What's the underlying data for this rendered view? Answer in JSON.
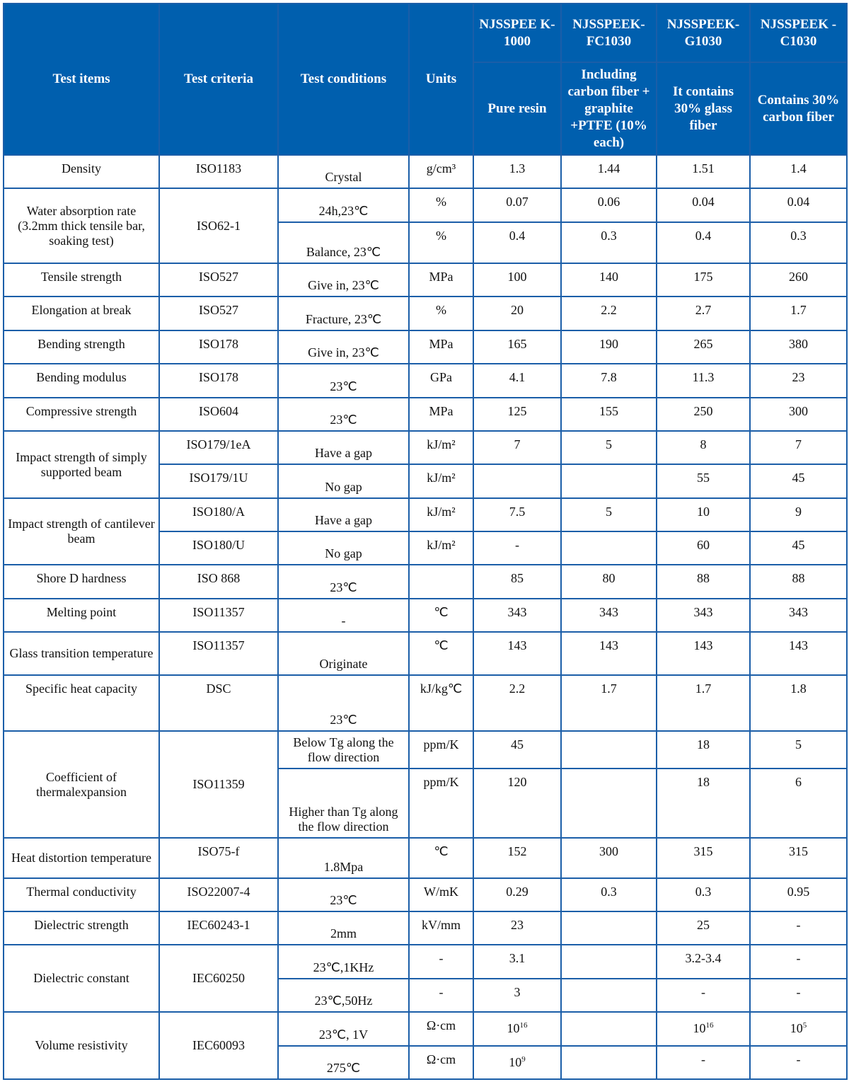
{
  "header": {
    "test_items": "Test items",
    "test_criteria": "Test criteria",
    "test_conditions": "Test conditions",
    "units": "Units",
    "grades": [
      {
        "name": "NJSSPEE K-1000",
        "desc": "Pure resin"
      },
      {
        "name": "NJSSPEEK-FC1030",
        "desc": "Including carbon fiber + graphite +PTFE (10% each)"
      },
      {
        "name": "NJSSPEEK-G1030",
        "desc": "It contains 30% glass fiber"
      },
      {
        "name": "NJSSPEEK -C1030",
        "desc": "Contains 30% carbon fiber"
      }
    ]
  },
  "colors": {
    "header_bg": "#005fae",
    "border": "#1b5ea8",
    "header_text": "#ffffff"
  },
  "groups": [
    {
      "item": "Density",
      "criteria": "ISO1183",
      "subrows": [
        {
          "condition": "Crystal",
          "unit": "g/cm³",
          "values": [
            "1.3",
            "1.44",
            "1.51",
            "1.4"
          ]
        }
      ]
    },
    {
      "item": "Water absorption rate (3.2mm thick tensile bar, soaking test)",
      "criteria": "ISO62-1",
      "subrows": [
        {
          "condition": "24h,23℃",
          "unit": "%",
          "values": [
            "0.07",
            "0.06",
            "0.04",
            "0.04"
          ]
        },
        {
          "condition": "Balance, 23℃",
          "unit": "%",
          "values": [
            "0.4",
            "0.3",
            "0.4",
            "0.3"
          ]
        }
      ]
    },
    {
      "item": "Tensile strength",
      "criteria": "ISO527",
      "subrows": [
        {
          "condition": "Give in, 23℃",
          "unit": "MPa",
          "values": [
            "100",
            "140",
            "175",
            "260"
          ]
        }
      ]
    },
    {
      "item": "Elongation at break",
      "criteria": "ISO527",
      "subrows": [
        {
          "condition": "Fracture, 23℃",
          "unit": "%",
          "values": [
            "20",
            "2.2",
            "2.7",
            "1.7"
          ]
        }
      ]
    },
    {
      "item": "Bending strength",
      "criteria": "ISO178",
      "subrows": [
        {
          "condition": "Give in, 23℃",
          "unit": "MPa",
          "values": [
            "165",
            "190",
            "265",
            "380"
          ]
        }
      ]
    },
    {
      "item": "Bending modulus",
      "criteria": "ISO178",
      "subrows": [
        {
          "condition": "23℃",
          "unit": "GPa",
          "values": [
            "4.1",
            "7.8",
            "11.3",
            "23"
          ]
        }
      ]
    },
    {
      "item": "Compressive strength",
      "criteria": "ISO604",
      "subrows": [
        {
          "condition": "23℃",
          "unit": "MPa",
          "values": [
            "125",
            "155",
            "250",
            "300"
          ]
        }
      ]
    },
    {
      "item": "Impact strength of simply supported beam",
      "criteria": [
        "ISO179/1eA",
        "ISO179/1U"
      ],
      "subrows": [
        {
          "condition": "Have a gap",
          "unit": "kJ/m²",
          "values": [
            "7",
            "5",
            "8",
            "7"
          ]
        },
        {
          "condition": "No gap",
          "unit": "kJ/m²",
          "values": [
            "",
            "",
            "55",
            "45"
          ]
        }
      ]
    },
    {
      "item": "Impact strength of cantilever beam",
      "criteria": [
        "ISO180/A",
        "ISO180/U"
      ],
      "subrows": [
        {
          "condition": "Have a gap",
          "unit": "kJ/m²",
          "values": [
            "7.5",
            "5",
            "10",
            "9"
          ]
        },
        {
          "condition": "No gap",
          "unit": "kJ/m²",
          "values": [
            "-",
            "",
            "60",
            "45"
          ]
        }
      ]
    },
    {
      "item": "Shore D hardness",
      "criteria": "ISO 868",
      "subrows": [
        {
          "condition": "23℃",
          "unit": "",
          "values": [
            "85",
            "80",
            "88",
            "88"
          ]
        }
      ]
    },
    {
      "item": "Melting point",
      "criteria": "ISO11357",
      "subrows": [
        {
          "condition": "-",
          "unit": "℃",
          "values": [
            "343",
            "343",
            "343",
            "343"
          ]
        }
      ]
    },
    {
      "item": "Glass transition temperature",
      "criteria": "ISO11357",
      "subrows": [
        {
          "condition": "Originate",
          "unit": "℃",
          "values": [
            "143",
            "143",
            "143",
            "143"
          ]
        }
      ]
    },
    {
      "item": "Specific heat capacity",
      "criteria": "DSC",
      "subrows": [
        {
          "condition": "23℃",
          "unit": "kJ/kg℃",
          "values": [
            "2.2",
            "1.7",
            "1.7",
            "1.8"
          ]
        }
      ]
    },
    {
      "item": "Coefficient of thermalexpansion",
      "criteria": "ISO11359",
      "subrows": [
        {
          "condition": "Below Tg along the flow direction",
          "unit": "ppm/K",
          "values": [
            "45",
            "",
            "18",
            "5"
          ]
        },
        {
          "condition": "Higher than Tg along the flow direction",
          "unit": "ppm/K",
          "values": [
            "120",
            "",
            "18",
            "6"
          ]
        }
      ]
    },
    {
      "item": "Heat distortion temperature",
      "criteria": "ISO75-f",
      "subrows": [
        {
          "condition": "1.8Mpa",
          "unit": "℃",
          "values": [
            "152",
            "300",
            "315",
            "315"
          ]
        }
      ]
    },
    {
      "item": "Thermal conductivity",
      "criteria": "ISO22007-4",
      "subrows": [
        {
          "condition": "23℃",
          "unit": "W/mK",
          "values": [
            "0.29",
            "0.3",
            "0.3",
            "0.95"
          ]
        }
      ]
    },
    {
      "item": "Dielectric strength",
      "criteria": "IEC60243-1",
      "subrows": [
        {
          "condition": "2mm",
          "unit": "kV/mm",
          "values": [
            "23",
            "",
            "25",
            "-"
          ]
        }
      ]
    },
    {
      "item": "Dielectric constant",
      "criteria": "IEC60250",
      "subrows": [
        {
          "condition": "23℃,1KHz",
          "unit": "-",
          "values": [
            "3.1",
            "",
            "3.2-3.4",
            "-"
          ]
        },
        {
          "condition": "23℃,50Hz",
          "unit": "-",
          "values": [
            "3",
            "",
            "-",
            "-"
          ]
        }
      ]
    },
    {
      "item": "Volume resistivity",
      "criteria": "IEC60093",
      "subrows": [
        {
          "condition": "23℃, 1V",
          "unit": "Ω·cm",
          "values": [
            {
              "base": "10",
              "exp": "16"
            },
            "",
            {
              "base": "10",
              "exp": "16"
            },
            {
              "base": "10",
              "exp": "5"
            }
          ]
        },
        {
          "condition": "275℃",
          "unit": "Ω·cm",
          "values": [
            {
              "base": "10",
              "exp": "9"
            },
            "",
            "-",
            "-"
          ]
        }
      ]
    }
  ]
}
